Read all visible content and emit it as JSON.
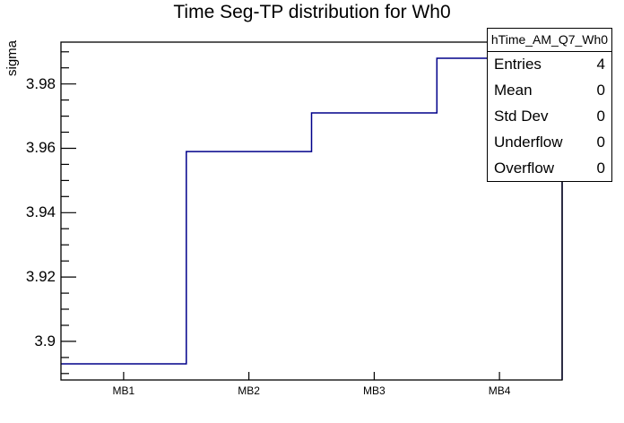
{
  "title": "Time Seg-TP distribution for Wh0",
  "stats_box": {
    "header": "hTime_AM_Q7_Wh0",
    "rows": [
      {
        "label": "Entries",
        "value": "4"
      },
      {
        "label": "Mean",
        "value": "0"
      },
      {
        "label": "Std Dev",
        "value": "0"
      },
      {
        "label": "Underflow",
        "value": "0"
      },
      {
        "label": "Overflow",
        "value": "0"
      }
    ]
  },
  "chart_data": {
    "type": "line",
    "style": "step-histogram",
    "title": "Time Seg-TP distribution for Wh0",
    "categories": [
      "MB1",
      "MB2",
      "MB3",
      "MB4"
    ],
    "values": [
      3.893,
      3.959,
      3.971,
      3.988
    ],
    "xlabel": "",
    "ylabel": "sigma",
    "ylim": [
      3.888,
      3.993
    ],
    "yticks": [
      3.9,
      3.92,
      3.94,
      3.96,
      3.98
    ],
    "ytick_labels": [
      "3.9",
      "3.92",
      "3.94",
      "3.96",
      "3.98"
    ],
    "minor_tick_step": 0.005,
    "grid": false,
    "legend_position": "none",
    "line_color": "#00008a"
  },
  "colors": {
    "histogram_line": "#00008a",
    "axis": "#000000",
    "background": "#ffffff"
  }
}
